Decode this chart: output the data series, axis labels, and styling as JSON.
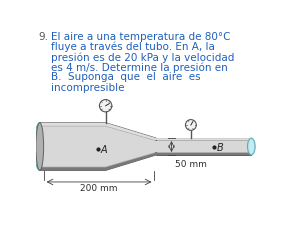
{
  "number": "9.",
  "text_lines": [
    "El aire a una temperatura de 80°C",
    "fluye a través del tubo. En A, la",
    "presión es de 20 kPa y la velocidad",
    "es 4 m/s. Determine la presión en",
    "B.  Suponga  que  el  aire  es",
    "incompresible"
  ],
  "bg_color": "#ffffff",
  "text_color": "#2060bb",
  "number_color": "#555555",
  "label_200mm": "200 mm",
  "label_50mm": "50 mm",
  "label_A": "A",
  "label_B": "B",
  "tube_mid": "#b0b0b0",
  "tube_light": "#d8d8d8",
  "tube_dark": "#787878",
  "tube_highlight": "#ececec",
  "fluid_color": "#a0d8e0",
  "fluid_dark": "#5aabb8"
}
